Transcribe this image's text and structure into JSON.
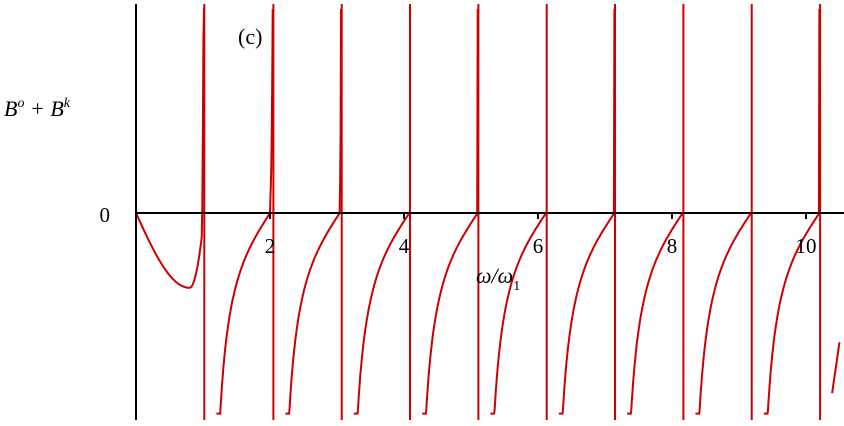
{
  "chart_data": {
    "type": "line",
    "panel_label": "(c)",
    "ylabel": {
      "base1": "B",
      "sup1": "o",
      "plus": " + ",
      "base2": "B",
      "sup2": "k"
    },
    "xlabel": {
      "num": "ω",
      "slash": "/",
      "den": "ω",
      "sub": "1"
    },
    "xlim": [
      0,
      10.5
    ],
    "ylim": [
      -3.0,
      3.0
    ],
    "x_ticks": [
      2,
      4,
      6,
      8,
      10
    ],
    "x_tick_labels": [
      "2",
      "4",
      "6",
      "8",
      "10"
    ],
    "y_ticks": [
      0
    ],
    "y_tick_labels": [
      "0"
    ],
    "poles": [
      1.02,
      2.05,
      3.07,
      4.09,
      5.11,
      6.13,
      7.15,
      8.17,
      9.19,
      10.21
    ],
    "zeros": [
      2.0,
      3.04,
      4.08,
      5.1,
      6.12,
      7.14,
      8.16,
      9.18,
      10.2
    ],
    "first_branch_min": {
      "x": 0.8,
      "y": -1.1
    },
    "series": [
      {
        "values_described_by": "poles_and_zeros",
        "color": "#cc0000"
      }
    ],
    "grid": false,
    "legend": "none"
  }
}
